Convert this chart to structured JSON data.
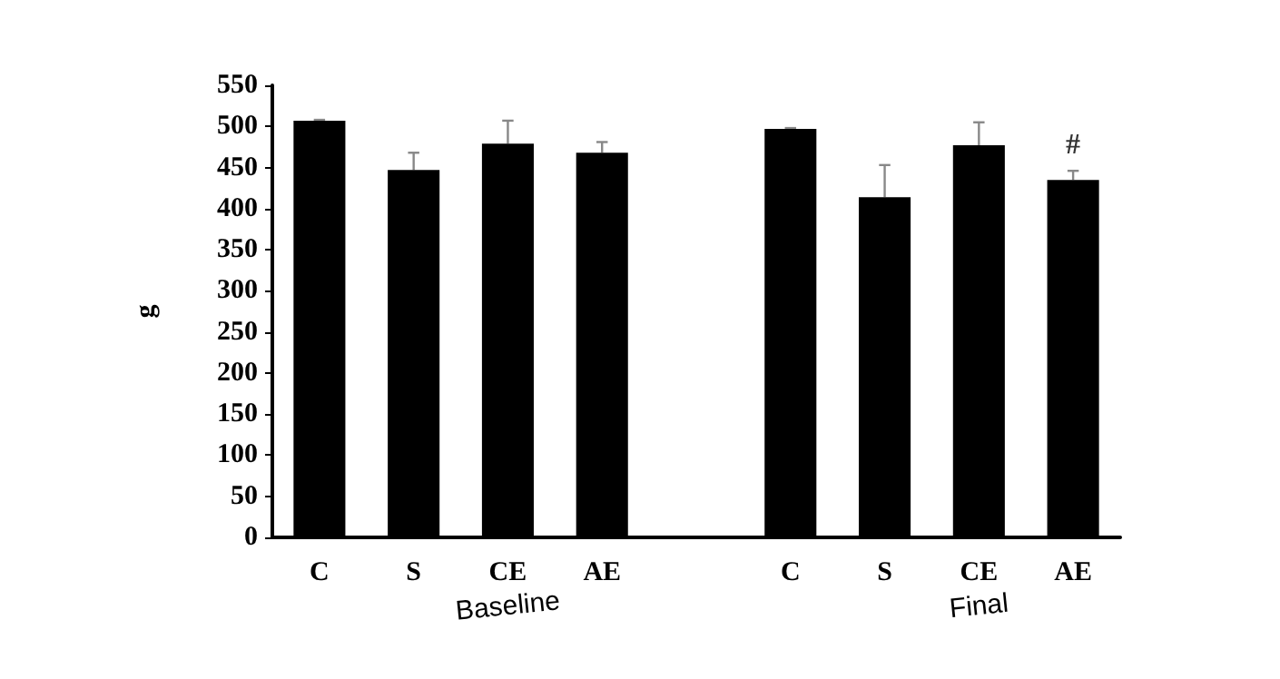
{
  "chart_data": {
    "type": "bar",
    "ylabel": "g",
    "categories": [
      "C",
      "S",
      "CE",
      "AE",
      null,
      "C",
      "S",
      "CE",
      "AE"
    ],
    "values": [
      507,
      447,
      479,
      468,
      null,
      497,
      414,
      477,
      435
    ],
    "errors": [
      1,
      21,
      28,
      13,
      null,
      1,
      39,
      28,
      11
    ],
    "value_labels": [
      null,
      null,
      null,
      null,
      null,
      null,
      null,
      null,
      "#"
    ],
    "color": "#000000",
    "ylim": [
      0,
      550
    ],
    "yticks": [
      0,
      50,
      100,
      150,
      200,
      250,
      300,
      350,
      400,
      450,
      500,
      550
    ],
    "annotations": [
      "Baseline",
      "Final"
    ],
    "grid": false
  }
}
